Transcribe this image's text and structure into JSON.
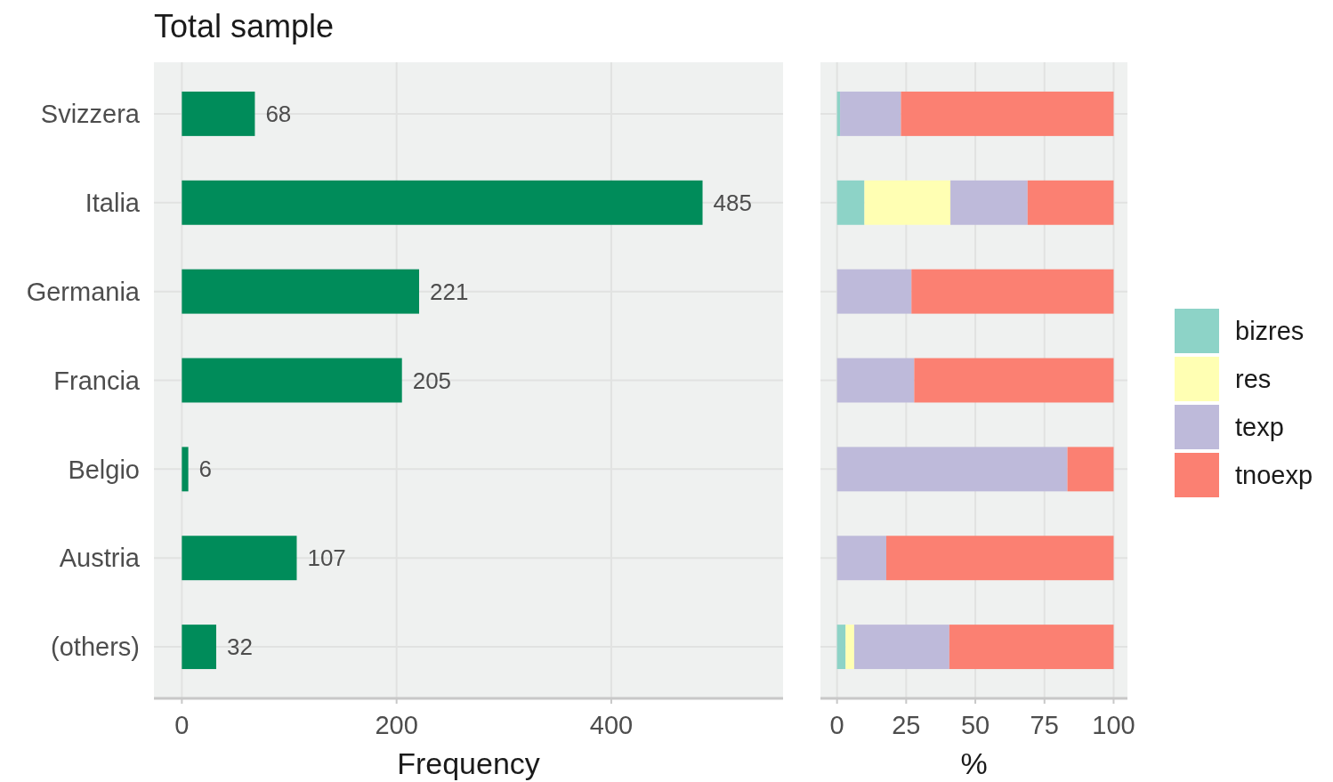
{
  "chart_data": [
    {
      "type": "bar",
      "orientation": "horizontal",
      "title": "Total sample",
      "xlabel": "Frequency",
      "categories": [
        "Svizzera",
        "Italia",
        "Germania",
        "Francia",
        "Belgio",
        "Austria",
        "(others)"
      ],
      "values": [
        68,
        485,
        221,
        205,
        6,
        107,
        32
      ],
      "color": "#008c5a",
      "data_labels": true,
      "xlim": [
        -26,
        560
      ],
      "xticks": [
        0,
        200,
        400
      ],
      "grid": true
    },
    {
      "type": "bar",
      "orientation": "horizontal",
      "stacked": true,
      "xlabel": "%",
      "categories": [
        null,
        null,
        null,
        null,
        null,
        null,
        null
      ],
      "tick_labels": "x",
      "legend": "right",
      "xlim": [
        -6,
        105
      ],
      "xticks": [
        0,
        25,
        50,
        75,
        100
      ],
      "grid": true,
      "series": [
        {
          "name": "bizres",
          "color": "#8dd3c7",
          "values": [
            1.1,
            9.9,
            0,
            0,
            0,
            0,
            3.1
          ]
        },
        {
          "name": "res",
          "color": "#ffffb3",
          "values": [
            0,
            31.1,
            0,
            0,
            0,
            0,
            3.1
          ]
        },
        {
          "name": "texp",
          "color": "#bebada",
          "values": [
            22,
            27.9,
            26.9,
            27.9,
            83.3,
            17.8,
            34.4
          ]
        },
        {
          "name": "tnoexp",
          "color": "#fb8072",
          "values": [
            76.9,
            31.1,
            73.1,
            72.1,
            16.7,
            82.2,
            59.4
          ]
        }
      ]
    }
  ]
}
